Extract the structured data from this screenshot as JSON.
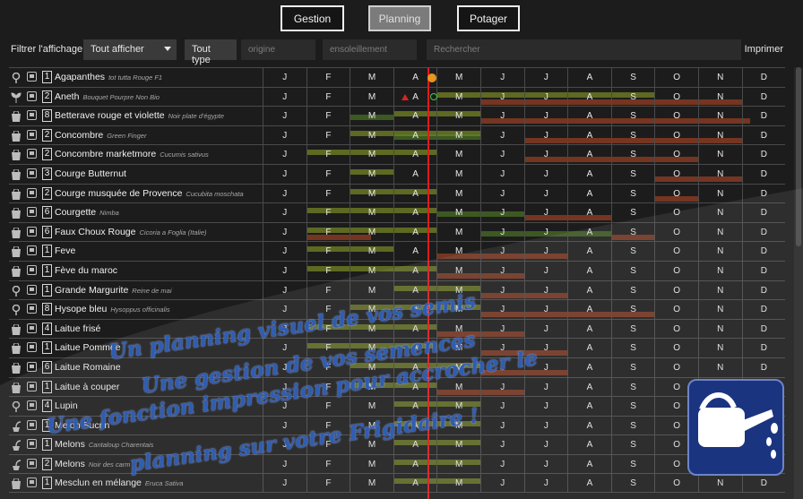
{
  "nav": {
    "gestion": "Gestion",
    "planning": "Planning",
    "potager": "Potager"
  },
  "filter": {
    "label": "Filtrer l'affichage",
    "display": "Tout afficher",
    "type": "Tout type",
    "origin_placeholder": "origine",
    "sun_placeholder": "ensoleillement",
    "search_placeholder": "Rechercher",
    "print": "Imprimer"
  },
  "months": [
    "J",
    "F",
    "M",
    "A",
    "M",
    "J",
    "J",
    "A",
    "S",
    "O",
    "N",
    "D"
  ],
  "rows": [
    {
      "type": "bulb-icon",
      "qty": "1",
      "name": "Agapanthes",
      "variety": "tot tutta Rouge F1"
    },
    {
      "type": "sprout-icon",
      "qty": "2",
      "name": "Aneth",
      "variety": "Bouquet Pourpre Non Bio"
    },
    {
      "type": "seed-bag-icon",
      "qty": "8",
      "name": "Betterave rouge et violette",
      "variety": "Noir plate d'égypte"
    },
    {
      "type": "seed-bag-icon",
      "qty": "2",
      "name": "Concombre",
      "variety": "Green Finger"
    },
    {
      "type": "seed-bag-icon",
      "qty": "2",
      "name": "Concombre marketmore",
      "variety": "Cucumis sativus"
    },
    {
      "type": "seed-bag-icon",
      "qty": "3",
      "name": "Courge Butternut",
      "variety": ""
    },
    {
      "type": "seed-bag-icon",
      "qty": "2",
      "name": "Courge musquée de Provence",
      "variety": "Cucubita moschata"
    },
    {
      "type": "seed-bag-icon",
      "qty": "6",
      "name": "Courgette",
      "variety": "Nimba"
    },
    {
      "type": "seed-bag-icon",
      "qty": "6",
      "name": "Faux Choux Rouge",
      "variety": "Cicoria a Foglia (Italie)"
    },
    {
      "type": "seed-bag-icon",
      "qty": "1",
      "name": "Feve",
      "variety": ""
    },
    {
      "type": "seed-bag-icon",
      "qty": "1",
      "name": "Fève du maroc",
      "variety": ""
    },
    {
      "type": "bulb-icon",
      "qty": "1",
      "name": "Grande Margurite",
      "variety": "Reine de mai"
    },
    {
      "type": "bulb-icon",
      "qty": "8",
      "name": "Hysope bleu",
      "variety": "Hysoppus officinalis"
    },
    {
      "type": "seed-bag-icon",
      "qty": "4",
      "name": "Laitue frisé",
      "variety": ""
    },
    {
      "type": "seed-bag-icon",
      "qty": "1",
      "name": "Laitue Pommée",
      "variety": ""
    },
    {
      "type": "seed-bag-icon",
      "qty": "6",
      "name": "Laitue Romaine",
      "variety": ""
    },
    {
      "type": "seed-bag-icon",
      "qty": "1",
      "name": "Laitue à couper",
      "variety": ""
    },
    {
      "type": "bulb-icon",
      "qty": "4",
      "name": "Lupin",
      "variety": ""
    },
    {
      "type": "pot-icon",
      "qty": "1",
      "name": "Melon Sucrin",
      "variety": ""
    },
    {
      "type": "pot-icon",
      "qty": "1",
      "name": "Melons",
      "variety": "Cantaloup Charentais"
    },
    {
      "type": "pot-icon",
      "qty": "2",
      "name": "Melons",
      "variety": "Noir des carm"
    },
    {
      "type": "seed-bag-icon",
      "qty": "1",
      "name": "Mesclun en mélange",
      "variety": "Eruca Sativa"
    }
  ],
  "promo": {
    "line1": "Un planning visuel de vos semis",
    "line2": "Une gestion de vos semences",
    "line3": "Une fonction impression pour accrocher le",
    "line4": "planning sur votre Frigidaire !"
  },
  "colors": {
    "sowing": "#96aa28",
    "planting": "#5a8c28",
    "harvest": "#8c3c23",
    "today_line": "#e01b1b",
    "logo": "#1b3480"
  }
}
